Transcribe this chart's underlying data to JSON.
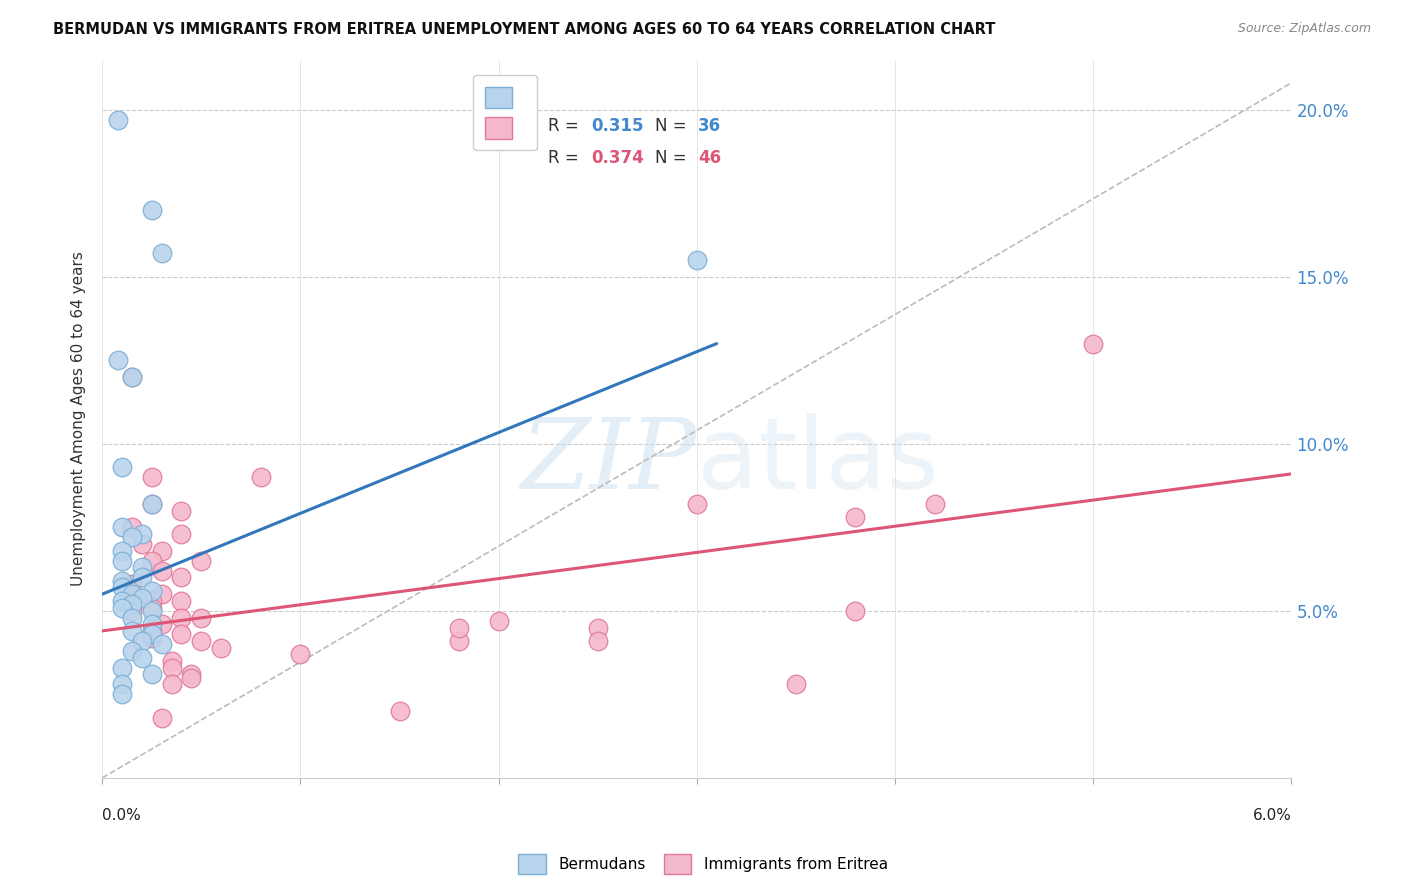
{
  "title": "BERMUDAN VS IMMIGRANTS FROM ERITREA UNEMPLOYMENT AMONG AGES 60 TO 64 YEARS CORRELATION CHART",
  "source": "Source: ZipAtlas.com",
  "ylabel": "Unemployment Among Ages 60 to 64 years",
  "right_ytick_labels": [
    "5.0%",
    "10.0%",
    "15.0%",
    "20.0%"
  ],
  "right_yticks": [
    0.05,
    0.1,
    0.15,
    0.2
  ],
  "xlim": [
    0.0,
    0.06
  ],
  "ylim": [
    0.0,
    0.215
  ],
  "legend_r1": "R = ",
  "legend_v1": "0.315",
  "legend_n1_label": "N = ",
  "legend_n1": "36",
  "legend_r2": "R = ",
  "legend_v2": "0.374",
  "legend_n2_label": "N = ",
  "legend_n2": "46",
  "label1": "Bermudans",
  "label2": "Immigrants from Eritrea",
  "blue_fill": "#b8d4ed",
  "blue_edge": "#7bafd4",
  "pink_fill": "#f4b8cc",
  "pink_edge": "#e07898",
  "blue_line_color": "#3377bb",
  "pink_line_color": "#dd5577",
  "ref_line_color": "#bbbbbb",
  "watermark_color": "#cce0f0",
  "blue_dots": [
    [
      0.0008,
      0.197
    ],
    [
      0.0025,
      0.17
    ],
    [
      0.003,
      0.157
    ],
    [
      0.0008,
      0.125
    ],
    [
      0.0015,
      0.12
    ],
    [
      0.001,
      0.093
    ],
    [
      0.0025,
      0.082
    ],
    [
      0.001,
      0.075
    ],
    [
      0.002,
      0.073
    ],
    [
      0.0015,
      0.072
    ],
    [
      0.001,
      0.068
    ],
    [
      0.001,
      0.065
    ],
    [
      0.002,
      0.063
    ],
    [
      0.002,
      0.06
    ],
    [
      0.001,
      0.059
    ],
    [
      0.001,
      0.057
    ],
    [
      0.0025,
      0.056
    ],
    [
      0.0015,
      0.055
    ],
    [
      0.002,
      0.054
    ],
    [
      0.001,
      0.053
    ],
    [
      0.0015,
      0.052
    ],
    [
      0.001,
      0.051
    ],
    [
      0.0025,
      0.05
    ],
    [
      0.0015,
      0.048
    ],
    [
      0.0025,
      0.046
    ],
    [
      0.0015,
      0.044
    ],
    [
      0.0025,
      0.043
    ],
    [
      0.002,
      0.041
    ],
    [
      0.003,
      0.04
    ],
    [
      0.0015,
      0.038
    ],
    [
      0.002,
      0.036
    ],
    [
      0.001,
      0.033
    ],
    [
      0.0025,
      0.031
    ],
    [
      0.001,
      0.028
    ],
    [
      0.001,
      0.025
    ],
    [
      0.03,
      0.155
    ]
  ],
  "pink_dots": [
    [
      0.0015,
      0.12
    ],
    [
      0.0025,
      0.09
    ],
    [
      0.008,
      0.09
    ],
    [
      0.0025,
      0.082
    ],
    [
      0.004,
      0.08
    ],
    [
      0.0015,
      0.075
    ],
    [
      0.004,
      0.073
    ],
    [
      0.002,
      0.07
    ],
    [
      0.003,
      0.068
    ],
    [
      0.0025,
      0.065
    ],
    [
      0.005,
      0.065
    ],
    [
      0.003,
      0.062
    ],
    [
      0.004,
      0.06
    ],
    [
      0.0015,
      0.058
    ],
    [
      0.003,
      0.055
    ],
    [
      0.0025,
      0.053
    ],
    [
      0.004,
      0.053
    ],
    [
      0.0025,
      0.051
    ],
    [
      0.0015,
      0.05
    ],
    [
      0.004,
      0.048
    ],
    [
      0.005,
      0.048
    ],
    [
      0.003,
      0.046
    ],
    [
      0.0025,
      0.044
    ],
    [
      0.004,
      0.043
    ],
    [
      0.0025,
      0.042
    ],
    [
      0.005,
      0.041
    ],
    [
      0.018,
      0.041
    ],
    [
      0.006,
      0.039
    ],
    [
      0.01,
      0.037
    ],
    [
      0.0035,
      0.035
    ],
    [
      0.0035,
      0.033
    ],
    [
      0.0045,
      0.031
    ],
    [
      0.0045,
      0.03
    ],
    [
      0.0035,
      0.028
    ],
    [
      0.035,
      0.028
    ],
    [
      0.02,
      0.047
    ],
    [
      0.025,
      0.045
    ],
    [
      0.038,
      0.05
    ],
    [
      0.025,
      0.041
    ],
    [
      0.05,
      0.13
    ],
    [
      0.042,
      0.082
    ],
    [
      0.038,
      0.078
    ],
    [
      0.018,
      0.045
    ],
    [
      0.03,
      0.082
    ],
    [
      0.003,
      0.018
    ],
    [
      0.015,
      0.02
    ]
  ],
  "blue_trendline": [
    [
      0.0,
      0.055
    ],
    [
      0.031,
      0.13
    ]
  ],
  "pink_trendline": [
    [
      0.0,
      0.044
    ],
    [
      0.06,
      0.091
    ]
  ],
  "ref_line": [
    [
      0.0,
      0.0
    ],
    [
      0.062,
      0.215
    ]
  ]
}
